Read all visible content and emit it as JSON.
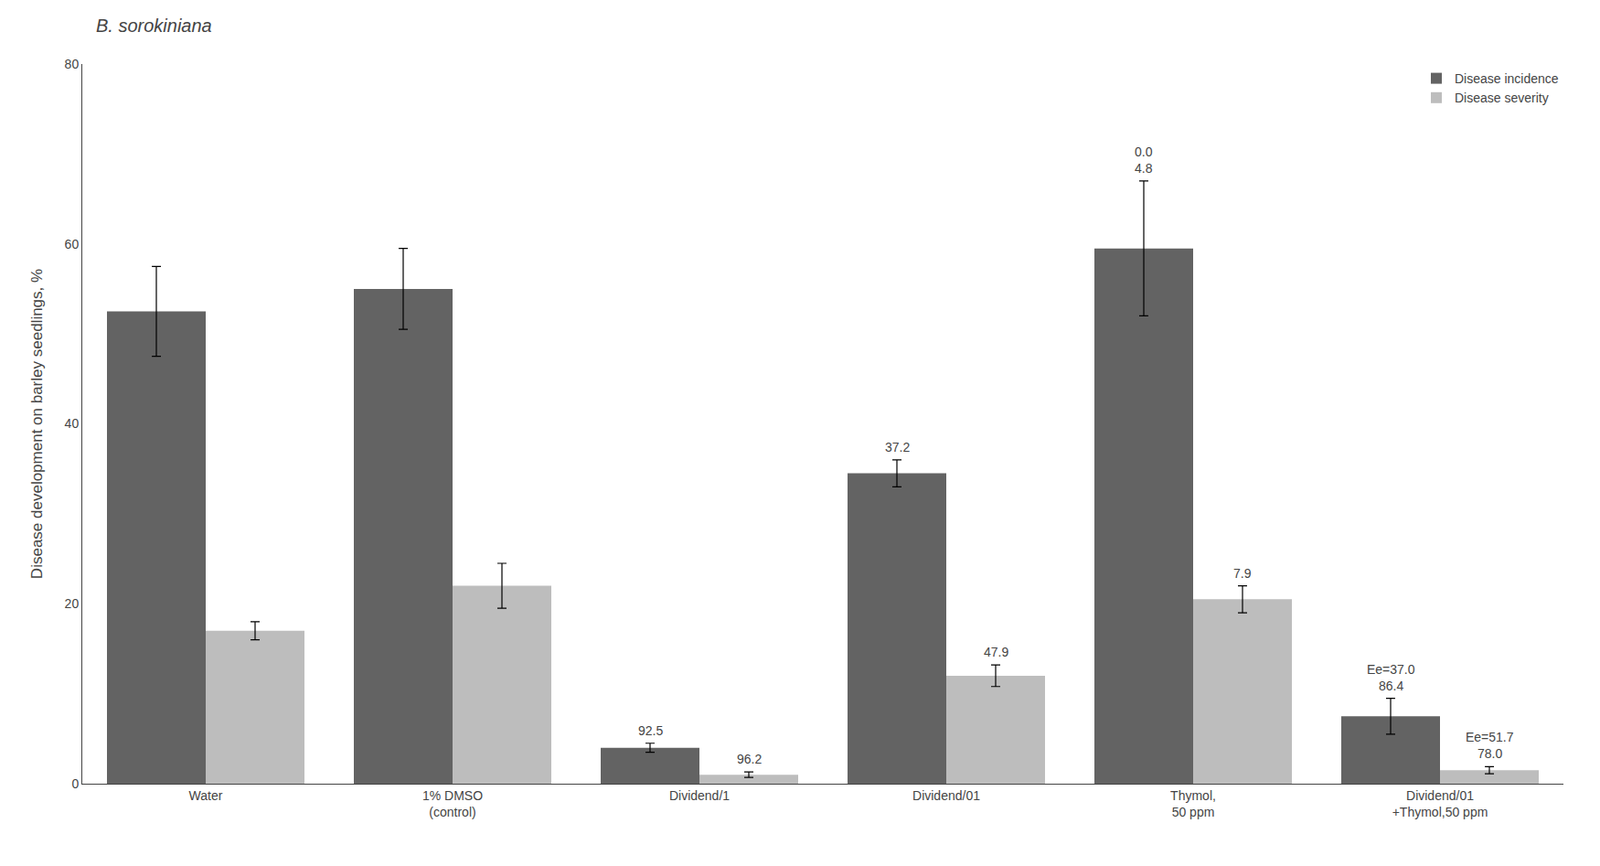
{
  "chart_data": {
    "type": "bar",
    "title": "B. sorokiniana",
    "ylabel": "Disease development on barley seedlings, %",
    "categories": [
      "Water",
      "1% DMSO\n(control)",
      "Dividend/1",
      "Dividend/01",
      "Thymol,\n50 ppm",
      "Dividend/01\n+Thymol,50 ppm"
    ],
    "series": [
      {
        "name": "Disease incidence",
        "color": "#636363",
        "values": [
          52.5,
          55.0,
          4.0,
          34.5,
          59.5,
          7.5
        ],
        "errors": [
          5.0,
          4.5,
          0.5,
          1.5,
          7.5,
          2.0
        ]
      },
      {
        "name": "Disease severity",
        "color": "#bdbdbd",
        "values": [
          17.0,
          22.0,
          1.0,
          12.0,
          20.5,
          1.5
        ],
        "errors": [
          1.0,
          2.5,
          0.3,
          1.2,
          1.5,
          0.4
        ]
      }
    ],
    "ylim": [
      0,
      80
    ],
    "yticks": [
      0,
      20,
      40,
      60,
      80
    ],
    "grid": false,
    "legend": "upper right",
    "annotations": [
      {
        "text": "92.5",
        "category": "Dividend/1",
        "series": "Disease incidence"
      },
      {
        "text": "96.2",
        "category": "Dividend/1",
        "series": "Disease severity"
      },
      {
        "text": "37.2",
        "category": "Dividend/01",
        "series": "Disease incidence"
      },
      {
        "text": "47.9",
        "category": "Dividend/01",
        "series": "Disease severity"
      },
      {
        "text": "4.8",
        "category": "Thymol,\n50 ppm",
        "series": "Disease incidence"
      },
      {
        "text": "0.0",
        "category": "Thymol,\n50 ppm",
        "series": "Disease incidence"
      },
      {
        "text": "7.9",
        "category": "Thymol,\n50 ppm",
        "series": "Disease severity"
      },
      {
        "text": "86.4",
        "category": "Dividend/01\n+Thymol,50 ppm",
        "series": "Disease incidence"
      },
      {
        "text": "Ee=37.0",
        "category": "Dividend/01\n+Thymol,50 ppm",
        "series": "Disease incidence"
      },
      {
        "text": "78.0",
        "category": "Dividend/01\n+Thymol,50 ppm",
        "series": "Disease severity"
      },
      {
        "text": "Ee=51.7",
        "category": "Dividend/01\n+Thymol,50 ppm",
        "series": "Disease severity"
      }
    ]
  }
}
